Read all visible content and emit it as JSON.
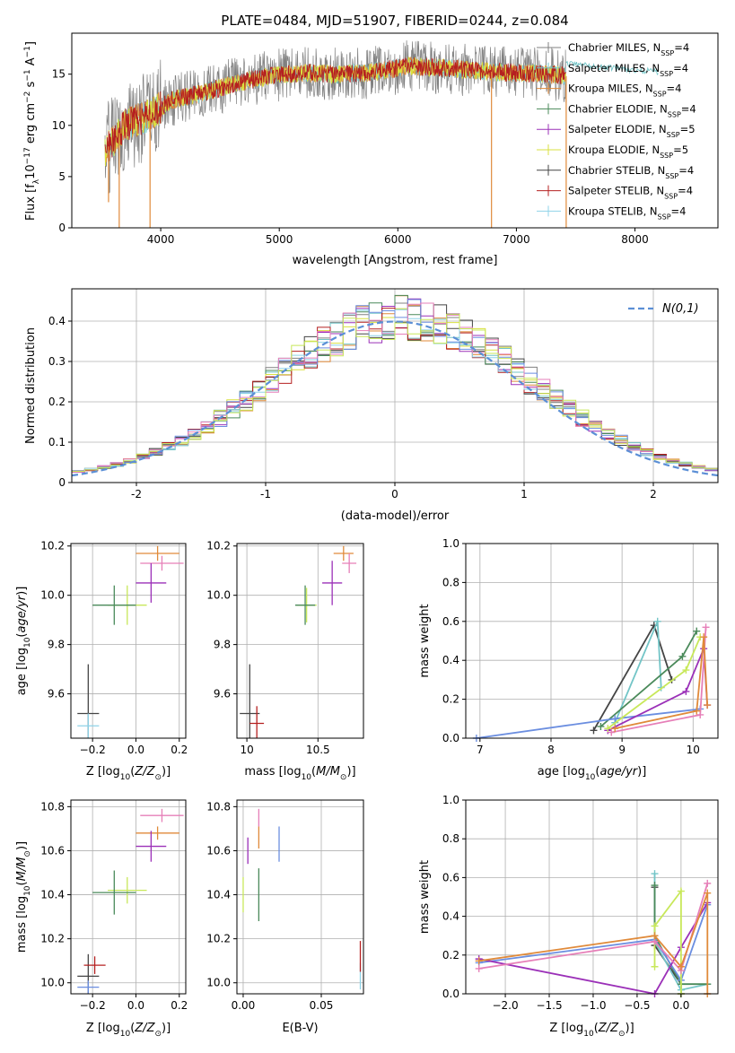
{
  "figure": {
    "title": "PLATE=0484, MJD=51907, FIBERID=0244, z=0.084"
  },
  "colors": {
    "grid": "#b0b0b0",
    "normal_curve": "#5b8fd6",
    "models": [
      "#808080",
      "#73c5c7",
      "#e08a3a",
      "#4a8a5a",
      "#9b30b8",
      "#d9e040",
      "#444444",
      "#b52020",
      "#8fd3e8",
      "#6b8ee0",
      "#e67fb8",
      "#c8e85a"
    ]
  },
  "chart_data": [
    {
      "id": "spectrum",
      "type": "line",
      "title": "PLATE=0484, MJD=51907, FIBERID=0244, z=0.084",
      "xlabel": "wavelength [Angstrom, rest frame]",
      "ylabel": "Flux [f_λ10^-17 erg cm^-2 s^-1 A^-1]",
      "xlim": [
        3250,
        8700
      ],
      "ylim": [
        0,
        19
      ],
      "xticks": [
        4000,
        5000,
        6000,
        7000,
        8000
      ],
      "yticks": [
        0,
        5,
        10,
        15
      ],
      "legend_position": "upper-right",
      "legend": [
        {
          "label": "Chabrier MILES, N",
          "sub": "SSP",
          "suffix": "=4",
          "color": "#808080"
        },
        {
          "label": "Salpeter MILES, N",
          "sub": "SSP",
          "suffix": "=4",
          "color": "#73c5c7"
        },
        {
          "label": "Kroupa MILES, N",
          "sub": "SSP",
          "suffix": "=4",
          "color": "#e08a3a"
        },
        {
          "label": "Chabrier ELODIE, N",
          "sub": "SSP",
          "suffix": "=4",
          "color": "#4a8a5a"
        },
        {
          "label": "Salpeter ELODIE, N",
          "sub": "SSP",
          "suffix": "=5",
          "color": "#9b30b8"
        },
        {
          "label": "Kroupa ELODIE, N",
          "sub": "SSP",
          "suffix": "=5",
          "color": "#d9e040"
        },
        {
          "label": "Chabrier STELIB, N",
          "sub": "SSP",
          "suffix": "=4",
          "color": "#444444"
        },
        {
          "label": "Salpeter STELIB, N",
          "sub": "SSP",
          "suffix": "=4",
          "color": "#b52020"
        },
        {
          "label": "Kroupa STELIB, N",
          "sub": "SSP",
          "suffix": "=4",
          "color": "#8fd3e8"
        }
      ],
      "continuum": {
        "wavelength": [
          3530,
          3700,
          3900,
          4100,
          4300,
          4600,
          4900,
          5200,
          5500,
          5800,
          6100,
          6400,
          6700,
          7000,
          7300,
          7420
        ],
        "flux": [
          7.5,
          10.0,
          11.0,
          12.5,
          13.0,
          14.0,
          14.8,
          15.1,
          15.0,
          15.2,
          15.8,
          15.6,
          15.3,
          15.1,
          15.0,
          14.8
        ]
      },
      "model_continuum": {
        "wavelength": [
          7420,
          7800,
          8200
        ],
        "flux": [
          16.0,
          15.7,
          15.2
        ]
      },
      "dips": [
        {
          "x": 3560,
          "y": 2.5
        },
        {
          "x": 3650,
          "y": 0.0
        },
        {
          "x": 3910,
          "y": 0.0
        },
        {
          "x": 6790,
          "y": 0.0
        },
        {
          "x": 7420,
          "y": 0.0
        }
      ]
    },
    {
      "id": "residual-hist",
      "type": "histogram",
      "xlabel": "(data-model)/error",
      "ylabel": "Normed distribution",
      "xlim": [
        -2.5,
        2.5
      ],
      "ylim": [
        0,
        0.48
      ],
      "xticks": [
        -2,
        -1,
        0,
        1,
        2
      ],
      "yticks": [
        0.0,
        0.1,
        0.2,
        0.3,
        0.4
      ],
      "legend_label": "N(0,1)",
      "bin_width": 0.1,
      "n_models": 12
    },
    {
      "id": "age-vs-Z",
      "type": "scatter",
      "xlabel": "Z [log10(Z/Z☉)]",
      "ylabel": "age  [log10(age/yr)]",
      "xlim": [
        -0.3,
        0.23
      ],
      "ylim": [
        9.42,
        10.21
      ],
      "xticks": [
        -0.2,
        0.0,
        0.2
      ],
      "xticklabels": [
        "−0.2",
        "0.0",
        "0.2"
      ],
      "yticks": [
        9.6,
        9.8,
        10.0,
        10.2
      ],
      "yticklabels": [
        "9.6",
        "9.8",
        "10.0",
        "10.2"
      ],
      "points": [
        {
          "x": 0.1,
          "y": 10.17,
          "xerr": 0.1,
          "yerr": 0.03,
          "c": "#e08a3a"
        },
        {
          "x": 0.12,
          "y": 10.13,
          "xerr": 0.1,
          "yerr": 0.03,
          "c": "#e67fb8"
        },
        {
          "x": 0.07,
          "y": 10.05,
          "xerr": 0.07,
          "yerr": 0.08,
          "c": "#9b30b8"
        },
        {
          "x": -0.04,
          "y": 9.96,
          "xerr": 0.09,
          "yerr": 0.08,
          "c": "#c8e85a"
        },
        {
          "x": -0.1,
          "y": 9.96,
          "xerr": 0.1,
          "yerr": 0.08,
          "c": "#4a8a5a"
        },
        {
          "x": -0.22,
          "y": 9.52,
          "xerr": 0.05,
          "yerr": 0.2,
          "c": "#444444"
        },
        {
          "x": -0.22,
          "y": 9.47,
          "xerr": 0.05,
          "yerr": 0.05,
          "c": "#8fd3e8"
        }
      ]
    },
    {
      "id": "age-vs-mass",
      "type": "scatter",
      "xlabel": "mass [log10(M/M☉)]",
      "ylabel": "",
      "xlim": [
        9.93,
        10.82
      ],
      "ylim": [
        9.42,
        10.21
      ],
      "xticks": [
        10.0,
        10.5
      ],
      "xticklabels": [
        "10",
        "10.5"
      ],
      "yticks": [
        9.6,
        9.8,
        10.0,
        10.2
      ],
      "yticklabels": [
        "9.6",
        "9.8",
        "10.0",
        "10.2"
      ],
      "points": [
        {
          "x": 10.68,
          "y": 10.17,
          "xerr": 0.07,
          "yerr": 0.03,
          "c": "#e08a3a"
        },
        {
          "x": 10.72,
          "y": 10.13,
          "xerr": 0.05,
          "yerr": 0.04,
          "c": "#e67fb8"
        },
        {
          "x": 10.6,
          "y": 10.05,
          "xerr": 0.07,
          "yerr": 0.09,
          "c": "#9b30b8"
        },
        {
          "x": 10.42,
          "y": 9.96,
          "xerr": 0.07,
          "yerr": 0.07,
          "c": "#c8e85a"
        },
        {
          "x": 10.41,
          "y": 9.96,
          "xerr": 0.07,
          "yerr": 0.08,
          "c": "#4a8a5a"
        },
        {
          "x": 10.02,
          "y": 9.52,
          "xerr": 0.07,
          "yerr": 0.2,
          "c": "#444444"
        },
        {
          "x": 10.07,
          "y": 9.48,
          "xerr": 0.05,
          "yerr": 0.07,
          "c": "#b52020"
        }
      ]
    },
    {
      "id": "weight-vs-age",
      "type": "line",
      "xlabel": "age  [log10(age/yr)]",
      "ylabel": "mass weight",
      "xlim": [
        6.8,
        10.35
      ],
      "ylim": [
        0.0,
        1.0
      ],
      "xticks": [
        7,
        8,
        9,
        10
      ],
      "yticks": [
        0.0,
        0.2,
        0.4,
        0.6,
        0.8,
        1.0
      ],
      "yticklabels": [
        "0.0",
        "0.2",
        "0.4",
        "0.6",
        "0.8",
        "1.0"
      ],
      "series": [
        {
          "c": "#444444",
          "x": [
            8.6,
            9.45,
            9.7
          ],
          "y": [
            0.04,
            0.58,
            0.3
          ]
        },
        {
          "c": "#73c5c7",
          "x": [
            8.9,
            9.5,
            9.55
          ],
          "y": [
            0.08,
            0.6,
            0.26
          ]
        },
        {
          "c": "#4a8a5a",
          "x": [
            8.7,
            9.85,
            10.05
          ],
          "y": [
            0.06,
            0.42,
            0.55
          ]
        },
        {
          "c": "#6b8ee0",
          "x": [
            6.95,
            8.9,
            10.1
          ],
          "y": [
            0.0,
            0.1,
            0.15
          ]
        },
        {
          "c": "#9b30b8",
          "x": [
            8.8,
            9.9,
            10.15,
            10.2
          ],
          "y": [
            0.04,
            0.24,
            0.46,
            0.17
          ]
        },
        {
          "c": "#c8e85a",
          "x": [
            8.8,
            9.9,
            10.1
          ],
          "y": [
            0.05,
            0.35,
            0.52
          ]
        },
        {
          "c": "#e67fb8",
          "x": [
            8.85,
            10.1,
            10.18
          ],
          "y": [
            0.03,
            0.12,
            0.57
          ]
        },
        {
          "c": "#e08a3a",
          "x": [
            8.9,
            10.05,
            10.15,
            10.2
          ],
          "y": [
            0.05,
            0.14,
            0.52,
            0.17
          ]
        }
      ]
    },
    {
      "id": "mass-vs-Z",
      "type": "scatter",
      "xlabel": "Z [log10(Z/Z☉)]",
      "ylabel": "mass [log10(M/M☉)]",
      "xlim": [
        -0.3,
        0.23
      ],
      "ylim": [
        9.95,
        10.83
      ],
      "xticks": [
        -0.2,
        0.0,
        0.2
      ],
      "xticklabels": [
        "−0.2",
        "0.0",
        "0.2"
      ],
      "yticks": [
        10.0,
        10.2,
        10.4,
        10.6,
        10.8
      ],
      "yticklabels": [
        "10.0",
        "10.2",
        "10.4",
        "10.6",
        "10.8"
      ],
      "points": [
        {
          "x": 0.1,
          "y": 10.68,
          "xerr": 0.1,
          "yerr": 0.03,
          "c": "#e08a3a"
        },
        {
          "x": 0.12,
          "y": 10.76,
          "xerr": 0.1,
          "yerr": 0.03,
          "c": "#e67fb8"
        },
        {
          "x": 0.07,
          "y": 10.62,
          "xerr": 0.07,
          "yerr": 0.07,
          "c": "#9b30b8"
        },
        {
          "x": -0.04,
          "y": 10.42,
          "xerr": 0.09,
          "yerr": 0.06,
          "c": "#c8e85a"
        },
        {
          "x": -0.1,
          "y": 10.41,
          "xerr": 0.1,
          "yerr": 0.1,
          "c": "#4a8a5a"
        },
        {
          "x": -0.22,
          "y": 10.03,
          "xerr": 0.05,
          "yerr": 0.1,
          "c": "#444444"
        },
        {
          "x": -0.19,
          "y": 10.08,
          "xerr": 0.05,
          "yerr": 0.04,
          "c": "#b52020"
        },
        {
          "x": -0.22,
          "y": 9.98,
          "xerr": 0.05,
          "yerr": 0.03,
          "c": "#6b8ee0"
        }
      ]
    },
    {
      "id": "mass-vs-ebv",
      "type": "scatter",
      "xlabel": "E(B-V)",
      "ylabel": "",
      "xlim": [
        -0.004,
        0.077
      ],
      "ylim": [
        9.95,
        10.83
      ],
      "xticks": [
        0.0,
        0.05
      ],
      "xticklabels": [
        "0.00",
        "0.05"
      ],
      "yticks": [
        10.0,
        10.2,
        10.4,
        10.6,
        10.8
      ],
      "yticklabels": [
        "10.0",
        "10.2",
        "10.4",
        "10.6",
        "10.8"
      ],
      "points": [
        {
          "x": 0.0,
          "y": 10.4,
          "xerr": 0.0,
          "yerr": 0.08,
          "c": "#c8e85a"
        },
        {
          "x": 0.003,
          "y": 10.6,
          "xerr": 0.0,
          "yerr": 0.06,
          "c": "#9b30b8"
        },
        {
          "x": 0.01,
          "y": 10.66,
          "xerr": 0.0,
          "yerr": 0.05,
          "c": "#e08a3a"
        },
        {
          "x": 0.01,
          "y": 10.75,
          "xerr": 0.0,
          "yerr": 0.04,
          "c": "#e67fb8"
        },
        {
          "x": 0.01,
          "y": 10.4,
          "xerr": 0.0,
          "yerr": 0.12,
          "c": "#4a8a5a"
        },
        {
          "x": 0.023,
          "y": 10.63,
          "xerr": 0.0,
          "yerr": 0.08,
          "c": "#6b8ee0"
        },
        {
          "x": 0.075,
          "y": 10.03,
          "xerr": 0.0,
          "yerr": 0.06,
          "c": "#8fd3e8"
        },
        {
          "x": 0.075,
          "y": 10.12,
          "xerr": 0.0,
          "yerr": 0.07,
          "c": "#b52020"
        }
      ]
    },
    {
      "id": "weight-vs-Z",
      "type": "line",
      "xlabel": "Z [log10(Z/Z☉)]",
      "ylabel": "mass weight",
      "xlim": [
        -2.45,
        0.42
      ],
      "ylim": [
        0.0,
        1.0
      ],
      "xticks": [
        -2.0,
        -1.5,
        -1.0,
        -0.5,
        0.0
      ],
      "xticklabels": [
        "−2.0",
        "−1.5",
        "−1.0",
        "−0.5",
        "0.0"
      ],
      "yticks": [
        0.0,
        0.2,
        0.4,
        0.6,
        0.8,
        1.0
      ],
      "yticklabels": [
        "0.0",
        "0.2",
        "0.4",
        "0.6",
        "0.8",
        "1.0"
      ],
      "series": [
        {
          "c": "#444444",
          "x": [
            -0.3,
            -0.3,
            0.0,
            0.0
          ],
          "y": [
            0.55,
            0.25,
            0.05,
            0.0
          ]
        },
        {
          "c": "#73c5c7",
          "x": [
            -0.3,
            -0.3,
            0.0,
            0.3
          ],
          "y": [
            0.62,
            0.27,
            0.02,
            0.05
          ]
        },
        {
          "c": "#4a8a5a",
          "x": [
            -0.3,
            -0.3,
            0.0,
            0.3
          ],
          "y": [
            0.56,
            0.3,
            0.05,
            0.05
          ]
        },
        {
          "c": "#6b8ee0",
          "x": [
            -2.3,
            -0.3,
            0.0,
            0.3
          ],
          "y": [
            0.16,
            0.28,
            0.07,
            0.46
          ]
        },
        {
          "c": "#9b30b8",
          "x": [
            -2.3,
            -0.3,
            0.0,
            0.3
          ],
          "y": [
            0.18,
            0.0,
            0.24,
            0.47
          ]
        },
        {
          "c": "#c8e85a",
          "x": [
            -0.3,
            -0.3,
            0.0,
            0.0
          ],
          "y": [
            0.14,
            0.35,
            0.53,
            0.0
          ]
        },
        {
          "c": "#e67fb8",
          "x": [
            -2.3,
            -0.3,
            0.0,
            0.3
          ],
          "y": [
            0.13,
            0.27,
            0.12,
            0.57
          ]
        },
        {
          "c": "#e08a3a",
          "x": [
            -2.3,
            -0.3,
            0.0,
            0.3,
            0.3
          ],
          "y": [
            0.17,
            0.3,
            0.14,
            0.52,
            0.0
          ]
        }
      ]
    }
  ]
}
